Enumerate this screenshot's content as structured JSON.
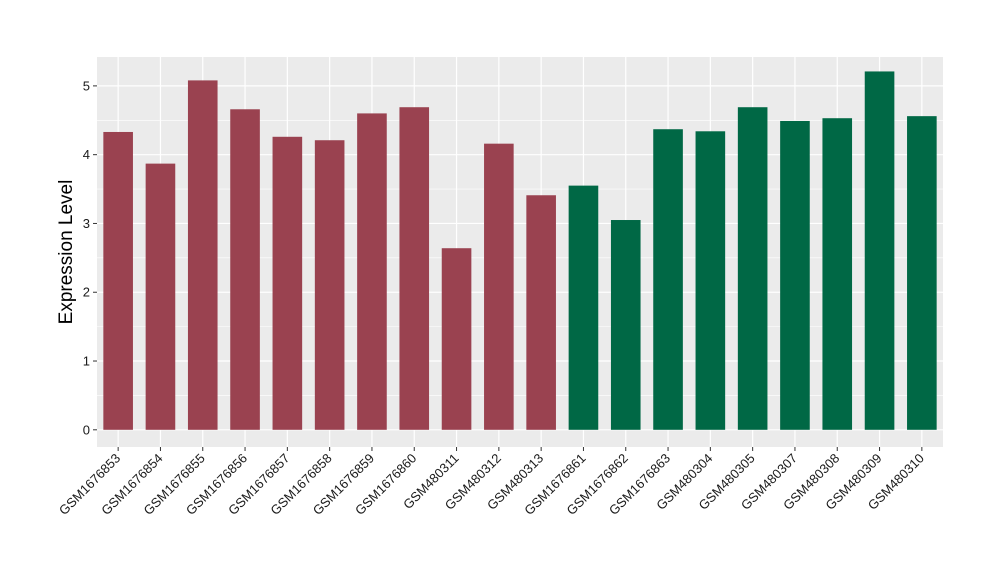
{
  "chart_data": {
    "type": "bar",
    "ylabel": "Expression Level",
    "xlabel": "",
    "ylim": [
      -0.25,
      5.42
    ],
    "yticks": [
      0,
      1,
      2,
      3,
      4,
      5
    ],
    "grid": true,
    "panel_background": "#ebebeb",
    "grid_color": "#ffffff",
    "categories": [
      "GSM1676853",
      "GSM1676854",
      "GSM1676855",
      "GSM1676856",
      "GSM1676857",
      "GSM1676858",
      "GSM1676859",
      "GSM1676860",
      "GSM480311",
      "GSM480312",
      "GSM480313",
      "GSM1676861",
      "GSM1676862",
      "GSM1676863",
      "GSM480304",
      "GSM480305",
      "GSM480307",
      "GSM480308",
      "GSM480309",
      "GSM480310"
    ],
    "values": [
      4.33,
      3.87,
      5.08,
      4.66,
      4.26,
      4.21,
      4.6,
      4.69,
      2.64,
      4.16,
      3.41,
      3.55,
      3.05,
      4.37,
      4.34,
      4.69,
      4.49,
      4.53,
      5.21,
      4.56
    ],
    "bar_colors": [
      "#9a4250",
      "#9a4250",
      "#9a4250",
      "#9a4250",
      "#9a4250",
      "#9a4250",
      "#9a4250",
      "#9a4250",
      "#9a4250",
      "#9a4250",
      "#9a4250",
      "#006845",
      "#006845",
      "#006845",
      "#006845",
      "#006845",
      "#006845",
      "#006845",
      "#006845",
      "#006845"
    ]
  }
}
